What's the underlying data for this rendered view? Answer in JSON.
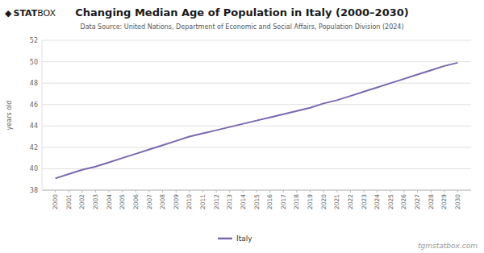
{
  "chart_data": {
    "type": "line",
    "title": "Changing Median Age of Population in Italy (2000–2030)",
    "subtitle": "Data Source: United Nations, Department of Economic and Social Affairs, Population Division (2024)",
    "y_label": "years old",
    "annotations": [
      "tgmstatbox.com",
      "◆",
      "STAT",
      "BOX"
    ],
    "x": [
      2000,
      2001,
      2002,
      2003,
      2004,
      2005,
      2006,
      2007,
      2008,
      2009,
      2010,
      2011,
      2012,
      2013,
      2014,
      2015,
      2016,
      2017,
      2018,
      2019,
      2020,
      2021,
      2022,
      2023,
      2024,
      2025,
      2026,
      2027,
      2028,
      2029,
      2030
    ],
    "xlim": [
      1999,
      2031
    ],
    "xticks": [
      2000,
      2001,
      2002,
      2003,
      2004,
      2005,
      2006,
      2007,
      2008,
      2009,
      2010,
      2011,
      2012,
      2013,
      2014,
      2015,
      2016,
      2017,
      2018,
      2019,
      2020,
      2021,
      2022,
      2023,
      2024,
      2025,
      2026,
      2027,
      2028,
      2029,
      2030
    ],
    "ylim": [
      38,
      52
    ],
    "yticks": [
      38,
      40,
      42,
      44,
      46,
      48,
      50,
      52
    ],
    "grid": true,
    "legend": "bottom",
    "series": [
      {
        "name": "Italy",
        "color": "#7B68AE",
        "values": [
          39.1,
          39.5,
          39.9,
          40.2,
          40.6,
          41.0,
          41.4,
          41.8,
          42.2,
          42.6,
          43.0,
          43.3,
          43.6,
          43.9,
          44.2,
          44.5,
          44.8,
          45.1,
          45.4,
          45.7,
          46.1,
          46.4,
          46.8,
          47.2,
          47.6,
          48.0,
          48.4,
          48.8,
          49.2,
          49.6,
          49.9
        ]
      }
    ]
  }
}
